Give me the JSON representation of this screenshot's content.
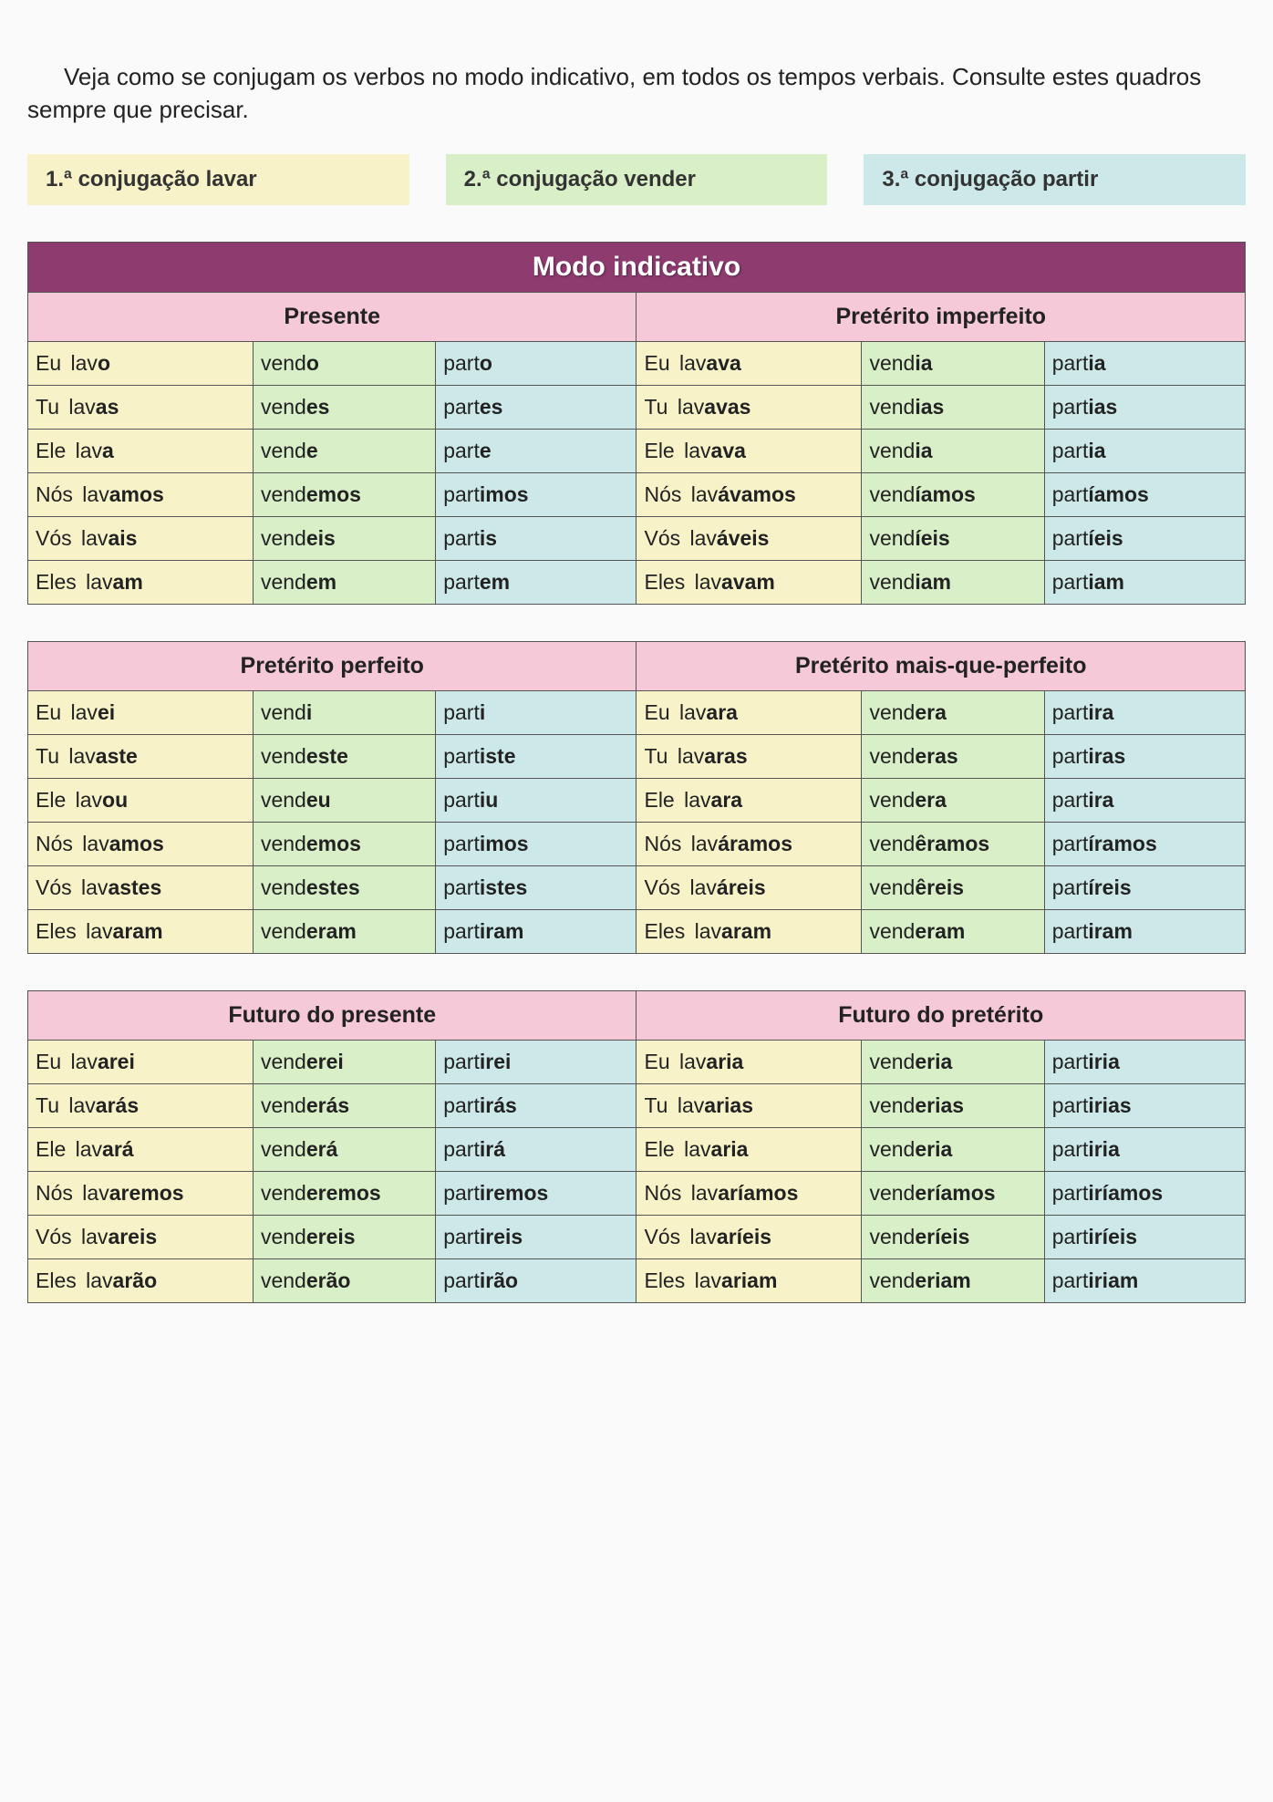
{
  "intro": "Veja como se conjugam os verbos no modo indicativo, em todos os tempos verbais. Consulte estes quadros sempre que precisar.",
  "colors": {
    "conj1_bg": "#f7f2c8",
    "conj2_bg": "#d9efc8",
    "conj3_bg": "#cde8e8",
    "title_bg": "#8e3b70",
    "tense_bg": "#f6c9d8",
    "border": "#555555"
  },
  "legend": [
    {
      "label": "1.ª conjugação lavar",
      "bg": "#f7f2c8"
    },
    {
      "label": "2.ª conjugação vender",
      "bg": "#d9efc8"
    },
    {
      "label": "3.ª conjugação partir",
      "bg": "#cde8e8"
    }
  ],
  "main_title": "Modo indicativo",
  "pronouns": [
    "Eu",
    "Tu",
    "Ele",
    "Nós",
    "Vós",
    "Eles"
  ],
  "blocks": [
    {
      "has_title": true,
      "tenses": [
        {
          "name": "Presente",
          "rows": [
            [
              [
                "lav",
                "o"
              ],
              [
                "vend",
                "o"
              ],
              [
                "part",
                "o"
              ]
            ],
            [
              [
                "lav",
                "as"
              ],
              [
                "vend",
                "es"
              ],
              [
                "part",
                "es"
              ]
            ],
            [
              [
                "lav",
                "a"
              ],
              [
                "vend",
                "e"
              ],
              [
                "part",
                "e"
              ]
            ],
            [
              [
                "lav",
                "amos"
              ],
              [
                "vend",
                "emos"
              ],
              [
                "part",
                "imos"
              ]
            ],
            [
              [
                "lav",
                "ais"
              ],
              [
                "vend",
                "eis"
              ],
              [
                "part",
                "is"
              ]
            ],
            [
              [
                "lav",
                "am"
              ],
              [
                "vend",
                "em"
              ],
              [
                "part",
                "em"
              ]
            ]
          ]
        },
        {
          "name": "Pretérito imperfeito",
          "rows": [
            [
              [
                "lav",
                "ava"
              ],
              [
                "vend",
                "ia"
              ],
              [
                "part",
                "ia"
              ]
            ],
            [
              [
                "lav",
                "avas"
              ],
              [
                "vend",
                "ias"
              ],
              [
                "part",
                "ias"
              ]
            ],
            [
              [
                "lav",
                "ava"
              ],
              [
                "vend",
                "ia"
              ],
              [
                "part",
                "ia"
              ]
            ],
            [
              [
                "lav",
                "ávamos"
              ],
              [
                "vend",
                "íamos"
              ],
              [
                "part",
                "íamos"
              ]
            ],
            [
              [
                "lav",
                "áveis"
              ],
              [
                "vend",
                "íeis"
              ],
              [
                "part",
                "íeis"
              ]
            ],
            [
              [
                "lav",
                "avam"
              ],
              [
                "vend",
                "iam"
              ],
              [
                "part",
                "iam"
              ]
            ]
          ]
        }
      ]
    },
    {
      "has_title": false,
      "tenses": [
        {
          "name": "Pretérito perfeito",
          "rows": [
            [
              [
                "lav",
                "ei"
              ],
              [
                "vend",
                "i"
              ],
              [
                "part",
                "i"
              ]
            ],
            [
              [
                "lav",
                "aste"
              ],
              [
                "vend",
                "este"
              ],
              [
                "part",
                "iste"
              ]
            ],
            [
              [
                "lav",
                "ou"
              ],
              [
                "vend",
                "eu"
              ],
              [
                "part",
                "iu"
              ]
            ],
            [
              [
                "lav",
                "amos"
              ],
              [
                "vend",
                "emos"
              ],
              [
                "part",
                "imos"
              ]
            ],
            [
              [
                "lav",
                "astes"
              ],
              [
                "vend",
                "estes"
              ],
              [
                "part",
                "istes"
              ]
            ],
            [
              [
                "lav",
                "aram"
              ],
              [
                "vend",
                "eram"
              ],
              [
                "part",
                "iram"
              ]
            ]
          ]
        },
        {
          "name": "Pretérito mais-que-perfeito",
          "rows": [
            [
              [
                "lav",
                "ara"
              ],
              [
                "vend",
                "era"
              ],
              [
                "part",
                "ira"
              ]
            ],
            [
              [
                "lav",
                "aras"
              ],
              [
                "vend",
                "eras"
              ],
              [
                "part",
                "iras"
              ]
            ],
            [
              [
                "lav",
                "ara"
              ],
              [
                "vend",
                "era"
              ],
              [
                "part",
                "ira"
              ]
            ],
            [
              [
                "lav",
                "áramos"
              ],
              [
                "vend",
                "êramos"
              ],
              [
                "part",
                "íramos"
              ]
            ],
            [
              [
                "lav",
                "áreis"
              ],
              [
                "vend",
                "êreis"
              ],
              [
                "part",
                "íreis"
              ]
            ],
            [
              [
                "lav",
                "aram"
              ],
              [
                "vend",
                "eram"
              ],
              [
                "part",
                "iram"
              ]
            ]
          ]
        }
      ]
    },
    {
      "has_title": false,
      "tenses": [
        {
          "name": "Futuro do presente",
          "rows": [
            [
              [
                "lav",
                "arei"
              ],
              [
                "vend",
                "erei"
              ],
              [
                "part",
                "irei"
              ]
            ],
            [
              [
                "lav",
                "arás"
              ],
              [
                "vend",
                "erás"
              ],
              [
                "part",
                "irás"
              ]
            ],
            [
              [
                "lav",
                "ará"
              ],
              [
                "vend",
                "erá"
              ],
              [
                "part",
                "irá"
              ]
            ],
            [
              [
                "lav",
                "aremos"
              ],
              [
                "vend",
                "eremos"
              ],
              [
                "part",
                "iremos"
              ]
            ],
            [
              [
                "lav",
                "areis"
              ],
              [
                "vend",
                "ereis"
              ],
              [
                "part",
                "ireis"
              ]
            ],
            [
              [
                "lav",
                "arão"
              ],
              [
                "vend",
                "erão"
              ],
              [
                "part",
                "irão"
              ]
            ]
          ]
        },
        {
          "name": "Futuro do pretérito",
          "rows": [
            [
              [
                "lav",
                "aria"
              ],
              [
                "vend",
                "eria"
              ],
              [
                "part",
                "iria"
              ]
            ],
            [
              [
                "lav",
                "arias"
              ],
              [
                "vend",
                "erias"
              ],
              [
                "part",
                "irias"
              ]
            ],
            [
              [
                "lav",
                "aria"
              ],
              [
                "vend",
                "eria"
              ],
              [
                "part",
                "iria"
              ]
            ],
            [
              [
                "lav",
                "aríamos"
              ],
              [
                "vend",
                "eríamos"
              ],
              [
                "part",
                "iríamos"
              ]
            ],
            [
              [
                "lav",
                "aríeis"
              ],
              [
                "vend",
                "eríeis"
              ],
              [
                "part",
                "iríeis"
              ]
            ],
            [
              [
                "lav",
                "ariam"
              ],
              [
                "vend",
                "eriam"
              ],
              [
                "part",
                "iriam"
              ]
            ]
          ]
        }
      ]
    }
  ]
}
